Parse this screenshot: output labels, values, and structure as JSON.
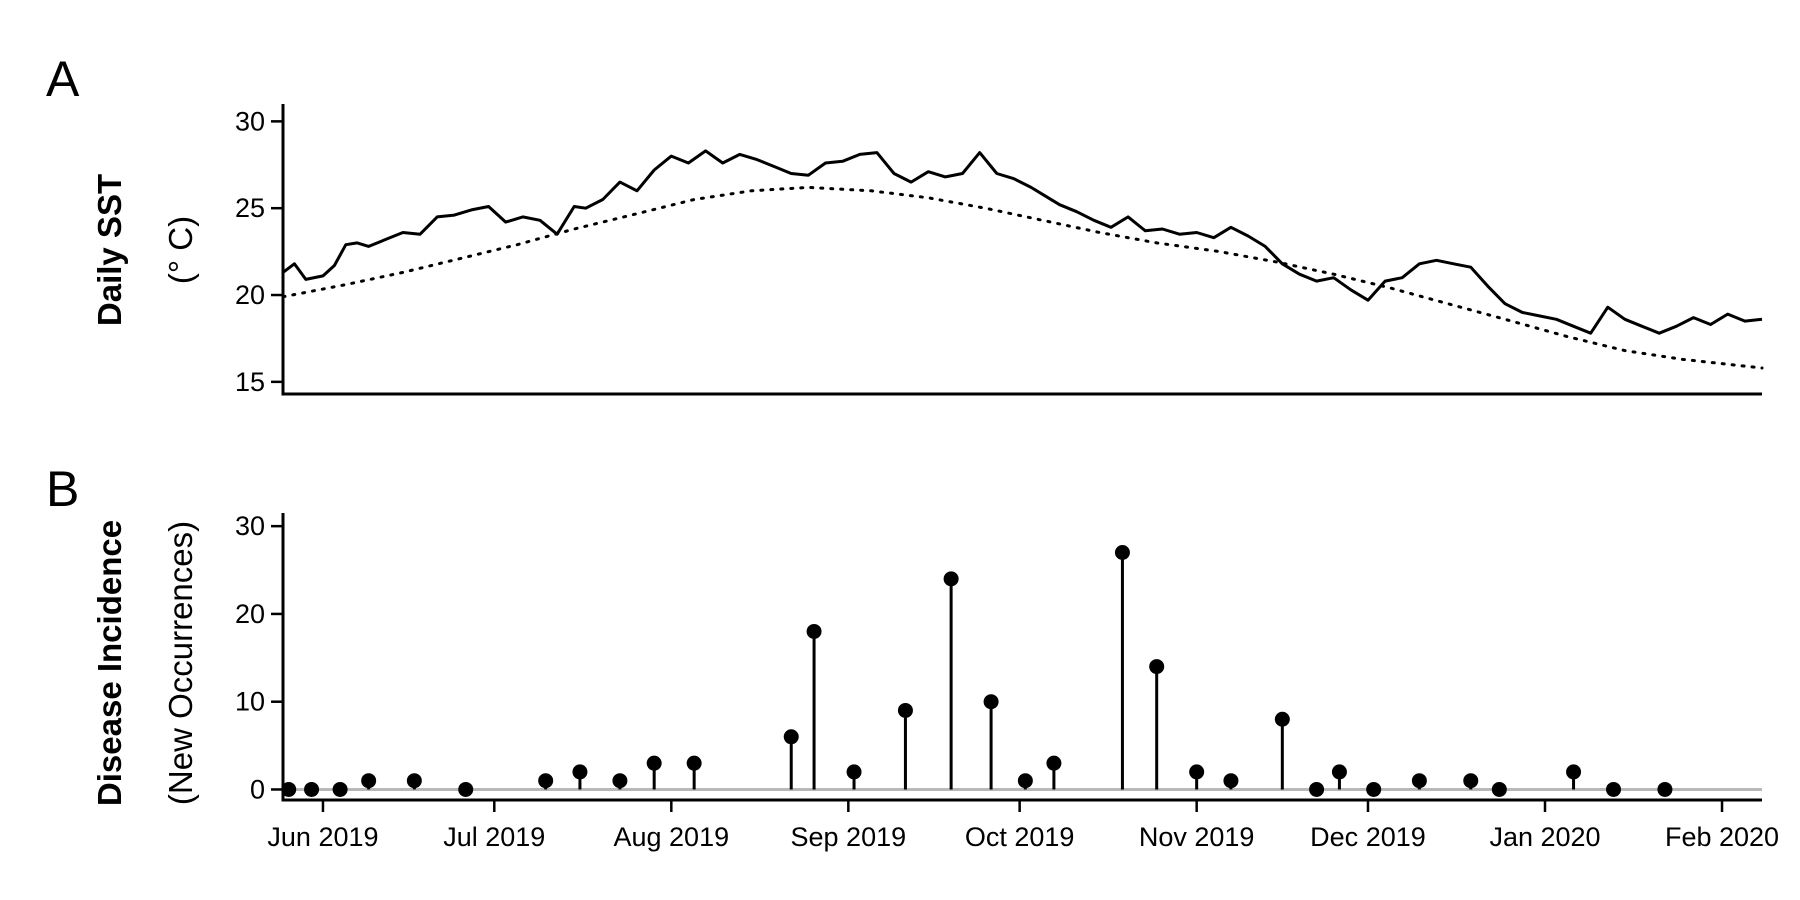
{
  "chart_data": [
    {
      "panel": "A",
      "type": "line",
      "ylabel": "Daily SST",
      "ylabel_units": "(° C)",
      "ylim": [
        14.3,
        31.0
      ],
      "yticks": [
        15,
        20,
        25,
        30
      ],
      "xlim": [
        "2019-05-25",
        "2020-02-08"
      ],
      "series": [
        {
          "style": "solid",
          "x": [
            "2019-05-25",
            "2019-05-27",
            "2019-05-29",
            "2019-06-01",
            "2019-06-03",
            "2019-06-05",
            "2019-06-07",
            "2019-06-09",
            "2019-06-12",
            "2019-06-15",
            "2019-06-18",
            "2019-06-21",
            "2019-06-24",
            "2019-06-27",
            "2019-06-30",
            "2019-07-03",
            "2019-07-06",
            "2019-07-09",
            "2019-07-12",
            "2019-07-15",
            "2019-07-17",
            "2019-07-20",
            "2019-07-23",
            "2019-07-26",
            "2019-07-29",
            "2019-08-01",
            "2019-08-04",
            "2019-08-07",
            "2019-08-10",
            "2019-08-13",
            "2019-08-16",
            "2019-08-19",
            "2019-08-22",
            "2019-08-25",
            "2019-08-28",
            "2019-08-31",
            "2019-09-03",
            "2019-09-06",
            "2019-09-09",
            "2019-09-12",
            "2019-09-15",
            "2019-09-18",
            "2019-09-21",
            "2019-09-24",
            "2019-09-27",
            "2019-09-30",
            "2019-10-03",
            "2019-10-05",
            "2019-10-08",
            "2019-10-11",
            "2019-10-14",
            "2019-10-17",
            "2019-10-20",
            "2019-10-23",
            "2019-10-26",
            "2019-10-29",
            "2019-11-01",
            "2019-11-04",
            "2019-11-07",
            "2019-11-10",
            "2019-11-13",
            "2019-11-16",
            "2019-11-19",
            "2019-11-22",
            "2019-11-25",
            "2019-11-28",
            "2019-12-01",
            "2019-12-04",
            "2019-12-07",
            "2019-12-10",
            "2019-12-13",
            "2019-12-16",
            "2019-12-19",
            "2019-12-22",
            "2019-12-25",
            "2019-12-28",
            "2019-12-31",
            "2020-01-03",
            "2020-01-06",
            "2020-01-09",
            "2020-01-12",
            "2020-01-15",
            "2020-01-18",
            "2020-01-21",
            "2020-01-24",
            "2020-01-27",
            "2020-01-30",
            "2020-02-02",
            "2020-02-05",
            "2020-02-08"
          ],
          "values": [
            21.3,
            21.8,
            20.9,
            21.1,
            21.7,
            22.9,
            23.0,
            22.8,
            23.2,
            23.6,
            23.5,
            24.5,
            24.6,
            24.9,
            25.1,
            24.2,
            24.5,
            24.3,
            23.5,
            25.1,
            25.0,
            25.5,
            26.5,
            26.0,
            27.2,
            28.0,
            27.6,
            28.3,
            27.6,
            28.1,
            27.8,
            27.4,
            27.0,
            26.9,
            27.6,
            27.7,
            28.1,
            28.2,
            27.0,
            26.5,
            27.1,
            26.8,
            27.0,
            28.2,
            27.0,
            26.7,
            26.2,
            25.8,
            25.2,
            24.8,
            24.3,
            23.9,
            24.5,
            23.7,
            23.8,
            23.5,
            23.6,
            23.3,
            23.9,
            23.4,
            22.8,
            21.8,
            21.2,
            20.8,
            21.0,
            20.3,
            19.7,
            20.8,
            21.0,
            21.8,
            22.0,
            21.8,
            21.6,
            20.5,
            19.5,
            19.0,
            18.8,
            18.6,
            18.2,
            17.8,
            19.3,
            18.6,
            18.2,
            17.8,
            18.2,
            18.7,
            18.3,
            18.9,
            18.5,
            18.6
          ]
        },
        {
          "style": "dotted",
          "x": [
            "2019-05-25",
            "2019-06-05",
            "2019-06-15",
            "2019-06-25",
            "2019-07-05",
            "2019-07-15",
            "2019-07-25",
            "2019-08-05",
            "2019-08-15",
            "2019-08-25",
            "2019-09-05",
            "2019-09-15",
            "2019-09-25",
            "2019-10-05",
            "2019-10-15",
            "2019-10-25",
            "2019-11-05",
            "2019-11-15",
            "2019-11-25",
            "2019-12-05",
            "2019-12-15",
            "2019-12-25",
            "2020-01-05",
            "2020-01-15",
            "2020-01-25",
            "2020-02-08"
          ],
          "values": [
            19.9,
            20.6,
            21.3,
            22.1,
            22.9,
            23.8,
            24.6,
            25.5,
            26.0,
            26.2,
            26.0,
            25.6,
            25.0,
            24.3,
            23.6,
            23.0,
            22.5,
            21.9,
            21.2,
            20.4,
            19.5,
            18.6,
            17.6,
            16.8,
            16.3,
            15.8
          ]
        }
      ]
    },
    {
      "panel": "B",
      "type": "lollipop",
      "ylabel": "Disease Incidence",
      "ylabel_units": "(New Occurrences)",
      "ylim": [
        -1.2,
        31.5
      ],
      "yticks": [
        0,
        10,
        20,
        30
      ],
      "xlim": [
        "2019-05-25",
        "2020-02-08"
      ],
      "xticks": [
        "2019-06-01",
        "2019-07-01",
        "2019-08-01",
        "2019-09-01",
        "2019-10-01",
        "2019-11-01",
        "2019-12-01",
        "2020-01-01",
        "2020-02-01"
      ],
      "xtick_labels": [
        "Jun 2019",
        "Jul 2019",
        "Aug 2019",
        "Sep 2019",
        "Oct 2019",
        "Nov 2019",
        "Dec 2019",
        "Jan 2020",
        "Feb 2020"
      ],
      "x": [
        "2019-05-26",
        "2019-05-30",
        "2019-06-04",
        "2019-06-09",
        "2019-06-17",
        "2019-06-26",
        "2019-07-10",
        "2019-07-16",
        "2019-07-23",
        "2019-07-29",
        "2019-08-05",
        "2019-08-22",
        "2019-08-26",
        "2019-09-02",
        "2019-09-11",
        "2019-09-19",
        "2019-09-26",
        "2019-10-02",
        "2019-10-07",
        "2019-10-19",
        "2019-10-25",
        "2019-11-01",
        "2019-11-07",
        "2019-11-16",
        "2019-11-22",
        "2019-11-26",
        "2019-12-02",
        "2019-12-10",
        "2019-12-19",
        "2019-12-24",
        "2020-01-06",
        "2020-01-13",
        "2020-01-22"
      ],
      "values": [
        0,
        0,
        0,
        1,
        1,
        0,
        1,
        2,
        1,
        3,
        3,
        6,
        18,
        2,
        9,
        24,
        10,
        1,
        3,
        27,
        14,
        2,
        1,
        8,
        0,
        2,
        0,
        1,
        1,
        0,
        2,
        0,
        0
      ]
    }
  ]
}
